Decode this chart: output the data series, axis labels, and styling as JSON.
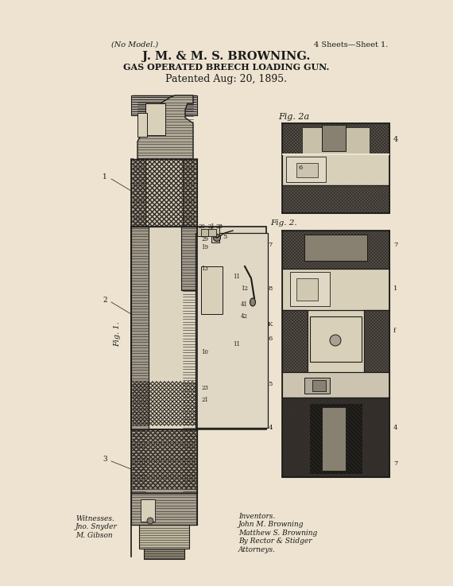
{
  "bg_color": "#ede3d0",
  "title_line1": "J. M. & M. S. BROWNING.",
  "title_line2": "GAS OPERATED BREECH LOADING GUN.",
  "title_line3": "Patented Aug: 20, 1895.",
  "no_model": "(No Model.)",
  "sheets": "4 Sheets—Sheet 1.",
  "text_color": "#1a1a1a",
  "witness_text": "Witnesses.\nJno. Snyder\nM. Gibson",
  "inventor_text": "Inventors.\nJohn M. Browning\nMatthew S. Browning\nBy Rector & Stidger\nAttorneys.",
  "fig1_label": "Fig. 1.",
  "fig2a_label": "Fig. 2a",
  "fig2_label": "Fig. 2.",
  "hatch_dark": "#2a2520",
  "metal_light": "#d8d0b8",
  "metal_mid": "#b0a898",
  "metal_dark": "#5a5248"
}
